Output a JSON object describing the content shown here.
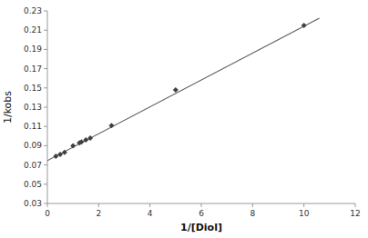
{
  "chart_data": {
    "type": "scatter",
    "x_label": "1/[Diol]",
    "y_label": "1/kobs",
    "xlim": [
      0,
      12
    ],
    "ylim": [
      0.03,
      0.23
    ],
    "xticks": [
      0,
      2,
      4,
      6,
      8,
      10,
      12
    ],
    "yticks": [
      0.03,
      0.05,
      0.07,
      0.09,
      0.11,
      0.13,
      0.15,
      0.17,
      0.19,
      0.21,
      0.23
    ],
    "grid": false,
    "series": [
      {
        "type": "scatter",
        "color": "#404040",
        "marker": "diamond",
        "x": [
          0.33,
          0.5,
          0.67,
          1.0,
          1.25,
          1.33,
          1.5,
          1.67,
          2.5,
          5.0,
          10.0
        ],
        "values": [
          0.079,
          0.081,
          0.083,
          0.09,
          0.093,
          0.094,
          0.096,
          0.098,
          0.111,
          0.148,
          0.215
        ]
      },
      {
        "type": "line",
        "color": "#606060",
        "x": [
          0.0,
          10.6
        ],
        "values": [
          0.0745,
          0.22237
        ]
      }
    ]
  }
}
